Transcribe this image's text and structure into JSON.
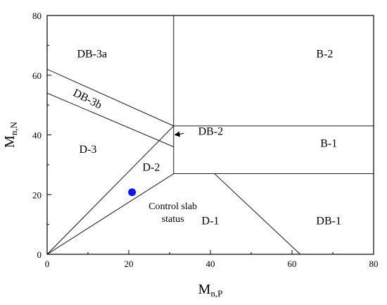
{
  "chart_data": {
    "type": "diagram",
    "xlabel": "M",
    "xlabel_sub": "n,P",
    "ylabel": "M",
    "ylabel_sub": "n,N",
    "xlim": [
      0,
      80
    ],
    "ylim": [
      0,
      80
    ],
    "xticks": [
      "0",
      "20",
      "40",
      "60",
      "80"
    ],
    "yticks": [
      "0",
      "20",
      "40",
      "60",
      "80"
    ],
    "grid": false,
    "boundaries": [
      {
        "name": "vertical-x31-top",
        "points": [
          [
            31,
            80
          ],
          [
            31,
            43
          ]
        ]
      },
      {
        "name": "vertical-x31-bottom",
        "points": [
          [
            31,
            43
          ],
          [
            31,
            27
          ]
        ]
      },
      {
        "name": "horizontal-y43",
        "points": [
          [
            31,
            43
          ],
          [
            80,
            43
          ]
        ]
      },
      {
        "name": "horizontal-y27",
        "points": [
          [
            31,
            27
          ],
          [
            80,
            27
          ]
        ]
      },
      {
        "name": "diag-upper",
        "points": [
          [
            0,
            62
          ],
          [
            31,
            43
          ]
        ]
      },
      {
        "name": "diag-lower",
        "points": [
          [
            0,
            54
          ],
          [
            31,
            36
          ]
        ]
      },
      {
        "name": "origin-to-top",
        "points": [
          [
            0,
            0
          ],
          [
            31,
            43
          ]
        ]
      },
      {
        "name": "origin-to-bottom",
        "points": [
          [
            0,
            0
          ],
          [
            31,
            27
          ]
        ]
      },
      {
        "name": "diag-d1-db1",
        "points": [
          [
            41,
            27
          ],
          [
            62,
            0
          ]
        ]
      }
    ],
    "regions": [
      {
        "label": "DB-3a",
        "x": 11,
        "y": 66
      },
      {
        "label": "B-2",
        "x": 68,
        "y": 66
      },
      {
        "label": "DB-3b",
        "x": 9.5,
        "y": 51,
        "rotate": 27
      },
      {
        "label": "DB-2",
        "x": 37,
        "y": 40
      },
      {
        "label": "B-1",
        "x": 69,
        "y": 36
      },
      {
        "label": "D-3",
        "x": 10,
        "y": 34
      },
      {
        "label": "D-2",
        "x": 25.5,
        "y": 28
      },
      {
        "label": "D-1",
        "x": 40,
        "y": 10
      },
      {
        "label": "DB-1",
        "x": 69,
        "y": 10
      }
    ],
    "point": {
      "label_line1": "Control slab",
      "label_line2": "status",
      "x": 20.8,
      "y": 20.8,
      "color": "#0a14ff"
    },
    "arrow": {
      "from": [
        33.5,
        40.5
      ],
      "to": [
        31.3,
        40
      ],
      "color": "#000000"
    }
  }
}
